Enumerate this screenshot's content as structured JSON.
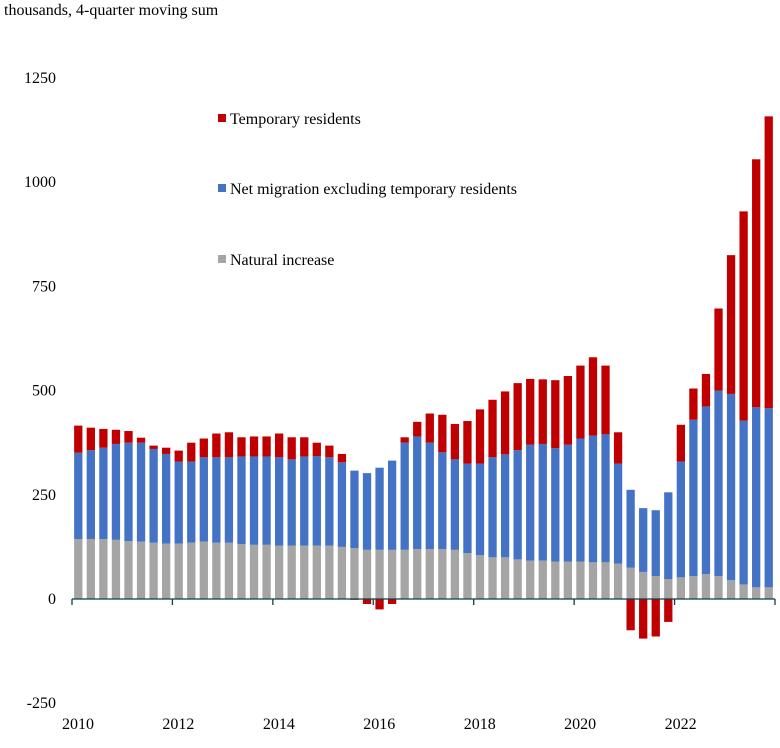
{
  "chart_data": {
    "type": "bar",
    "stacked": true,
    "subtitle": "thousands, 4-quarter moving sum",
    "title": "",
    "xlabel": "",
    "ylabel": "",
    "ylim": [
      -250,
      1250
    ],
    "yticks": [
      -250,
      0,
      250,
      500,
      750,
      1000,
      1250
    ],
    "xtick_labels": [
      "2010",
      "2012",
      "2014",
      "2016",
      "2018",
      "2020",
      "2022"
    ],
    "legend_position": "top-center",
    "frequency": "quarterly",
    "start": "2010Q1",
    "end": "2023Q4",
    "series": [
      {
        "name": "Natural increase",
        "color": "#a5a5a5",
        "values": [
          144,
          144,
          144,
          142,
          139,
          138,
          135,
          133,
          133,
          135,
          138,
          135,
          135,
          132,
          130,
          130,
          128,
          128,
          128,
          128,
          128,
          125,
          122,
          118,
          118,
          118,
          118,
          120,
          120,
          120,
          118,
          110,
          105,
          100,
          100,
          95,
          92,
          92,
          90,
          90,
          90,
          88,
          88,
          85,
          75,
          65,
          55,
          48,
          52,
          55,
          60,
          55,
          45,
          35,
          28,
          28
        ]
      },
      {
        "name": "Net migration excluding temporary residents",
        "color": "#4472c4",
        "values": [
          207,
          213,
          219,
          230,
          236,
          237,
          225,
          215,
          197,
          195,
          202,
          205,
          205,
          210,
          212,
          212,
          212,
          207,
          214,
          215,
          212,
          203,
          186,
          184,
          197,
          214,
          257,
          270,
          255,
          232,
          217,
          215,
          220,
          240,
          247,
          262,
          278,
          280,
          272,
          280,
          295,
          304,
          307,
          240,
          187,
          153,
          158,
          208,
          278,
          375,
          402,
          445,
          447,
          393,
          432,
          430
        ]
      },
      {
        "name": "Temporary residents",
        "color": "#c00000",
        "values": [
          65,
          54,
          45,
          34,
          28,
          12,
          8,
          15,
          26,
          45,
          45,
          57,
          60,
          46,
          48,
          48,
          57,
          53,
          46,
          32,
          28,
          20,
          -2,
          -12,
          -25,
          -12,
          13,
          35,
          70,
          90,
          85,
          102,
          130,
          138,
          151,
          161,
          158,
          155,
          163,
          165,
          175,
          188,
          165,
          75,
          -75,
          -95,
          -90,
          -55,
          88,
          75,
          78,
          197,
          333,
          502,
          595,
          700
        ]
      }
    ]
  }
}
